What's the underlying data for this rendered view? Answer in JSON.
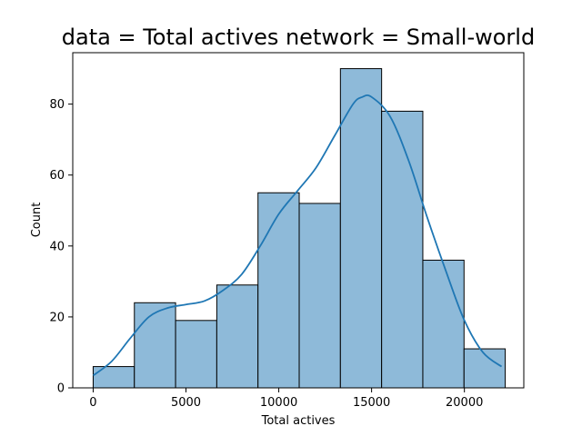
{
  "chart_data": {
    "type": "bar",
    "title": "data = Total actives network = Small-world",
    "xlabel": "Total actives",
    "ylabel": "Count",
    "xlim": [
      -1100,
      23200
    ],
    "ylim": [
      0,
      94.5
    ],
    "x_ticks": [
      0,
      5000,
      10000,
      15000,
      20000
    ],
    "x_tick_labels": [
      "0",
      "5000",
      "10000",
      "15000",
      "20000"
    ],
    "y_ticks": [
      0,
      20,
      40,
      60,
      80
    ],
    "y_tick_labels": [
      "0",
      "20",
      "40",
      "60",
      "80"
    ],
    "grid": false,
    "legend": "none",
    "bins": [
      {
        "x0": 0,
        "x1": 2220,
        "count": 6
      },
      {
        "x0": 2220,
        "x1": 4440,
        "count": 24
      },
      {
        "x0": 4440,
        "x1": 6660,
        "count": 19
      },
      {
        "x0": 6660,
        "x1": 8880,
        "count": 29
      },
      {
        "x0": 8880,
        "x1": 11100,
        "count": 55
      },
      {
        "x0": 11100,
        "x1": 13320,
        "count": 52
      },
      {
        "x0": 13320,
        "x1": 15540,
        "count": 90
      },
      {
        "x0": 15540,
        "x1": 17760,
        "count": 78
      },
      {
        "x0": 17760,
        "x1": 19980,
        "count": 36
      },
      {
        "x0": 19980,
        "x1": 22200,
        "count": 11
      }
    ],
    "kde": {
      "x": [
        0,
        1000,
        2000,
        3000,
        4000,
        5000,
        6000,
        7000,
        8000,
        9000,
        10000,
        11000,
        12000,
        13000,
        14000,
        14500,
        15000,
        16000,
        17000,
        18000,
        19000,
        20000,
        21000,
        22000
      ],
      "y": [
        3.5,
        7.5,
        14,
        20,
        22.5,
        23.5,
        24.5,
        27.5,
        32,
        40,
        49,
        55.5,
        62,
        71,
        80,
        82,
        82,
        76.5,
        64,
        48,
        33,
        19,
        10,
        6
      ]
    },
    "colors": {
      "bar_fill": "#8ebad9",
      "bar_edge": "#000000",
      "kde_line": "#1f77b4"
    }
  }
}
